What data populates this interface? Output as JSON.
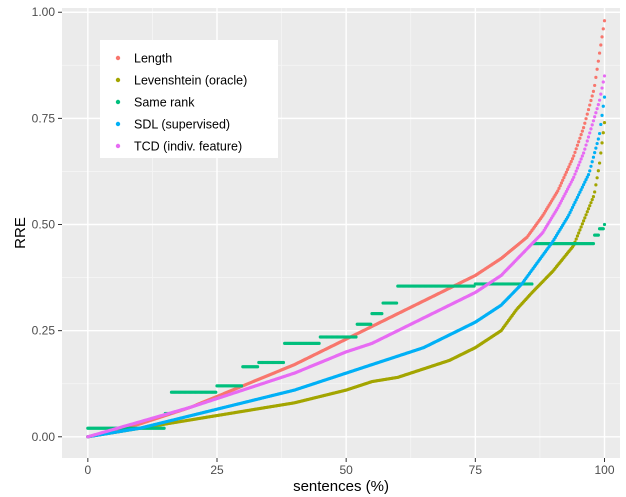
{
  "chart_data": {
    "type": "scatter",
    "title": "",
    "xlabel": "sentences (%)",
    "ylabel": "RRE",
    "xlim": [
      -5,
      103
    ],
    "ylim": [
      -0.05,
      1.01
    ],
    "x_ticks": [
      0,
      25,
      50,
      75,
      100
    ],
    "x_tick_labels": [
      "0",
      "25",
      "50",
      "75",
      "100"
    ],
    "y_ticks": [
      0,
      0.25,
      0.5,
      0.75,
      1.0
    ],
    "y_tick_labels": [
      "0.00",
      "0.25",
      "0.50",
      "0.75",
      "1.00"
    ],
    "grid": true,
    "legend_position": "top-left",
    "series": [
      {
        "name": "Length",
        "color": "#F8766D",
        "points": [
          [
            0,
            0.0
          ],
          [
            10,
            0.03
          ],
          [
            20,
            0.07
          ],
          [
            30,
            0.12
          ],
          [
            40,
            0.17
          ],
          [
            50,
            0.23
          ],
          [
            55,
            0.26
          ],
          [
            60,
            0.29
          ],
          [
            65,
            0.32
          ],
          [
            70,
            0.35
          ],
          [
            75,
            0.38
          ],
          [
            80,
            0.42
          ],
          [
            85,
            0.47
          ],
          [
            88,
            0.52
          ],
          [
            91,
            0.58
          ],
          [
            94,
            0.66
          ],
          [
            96,
            0.73
          ],
          [
            98,
            0.82
          ],
          [
            99,
            0.9
          ],
          [
            100,
            0.98
          ]
        ]
      },
      {
        "name": "Levenshtein (oracle)",
        "color": "#A3A500",
        "points": [
          [
            0,
            0.0
          ],
          [
            10,
            0.02
          ],
          [
            20,
            0.04
          ],
          [
            30,
            0.06
          ],
          [
            40,
            0.08
          ],
          [
            50,
            0.11
          ],
          [
            55,
            0.13
          ],
          [
            60,
            0.14
          ],
          [
            65,
            0.16
          ],
          [
            70,
            0.18
          ],
          [
            75,
            0.21
          ],
          [
            80,
            0.25
          ],
          [
            83,
            0.3
          ],
          [
            86,
            0.34
          ],
          [
            90,
            0.39
          ],
          [
            94,
            0.45
          ],
          [
            96,
            0.51
          ],
          [
            98,
            0.57
          ],
          [
            99,
            0.64
          ],
          [
            100,
            0.74
          ]
        ]
      },
      {
        "name": "Same rank",
        "color": "#00BF7D",
        "points": [
          [
            0,
            0.02
          ],
          [
            5,
            0.02
          ],
          [
            10,
            0.02
          ],
          [
            12,
            0.02
          ],
          [
            15,
            0.055
          ],
          [
            16,
            0.105
          ],
          [
            20,
            0.105
          ],
          [
            25,
            0.12
          ],
          [
            30,
            0.165
          ],
          [
            33,
            0.175
          ],
          [
            38,
            0.22
          ],
          [
            45,
            0.235
          ],
          [
            52,
            0.265
          ],
          [
            55,
            0.29
          ],
          [
            57,
            0.315
          ],
          [
            60,
            0.355
          ],
          [
            70,
            0.355
          ],
          [
            75,
            0.36
          ],
          [
            83,
            0.36
          ],
          [
            86,
            0.455
          ],
          [
            90,
            0.455
          ],
          [
            96,
            0.455
          ],
          [
            98,
            0.475
          ],
          [
            99,
            0.49
          ],
          [
            100,
            0.5
          ]
        ]
      },
      {
        "name": "SDL (supervised)",
        "color": "#00B0F6",
        "points": [
          [
            0,
            0.0
          ],
          [
            10,
            0.02
          ],
          [
            20,
            0.05
          ],
          [
            30,
            0.08
          ],
          [
            40,
            0.11
          ],
          [
            50,
            0.15
          ],
          [
            55,
            0.17
          ],
          [
            60,
            0.19
          ],
          [
            65,
            0.21
          ],
          [
            70,
            0.24
          ],
          [
            75,
            0.27
          ],
          [
            80,
            0.31
          ],
          [
            84,
            0.36
          ],
          [
            87,
            0.41
          ],
          [
            90,
            0.46
          ],
          [
            93,
            0.52
          ],
          [
            95,
            0.57
          ],
          [
            97,
            0.62
          ],
          [
            99,
            0.71
          ],
          [
            100,
            0.8
          ]
        ]
      },
      {
        "name": "TCD (indiv. feature)",
        "color": "#E76BF3",
        "points": [
          [
            0,
            0.0
          ],
          [
            10,
            0.035
          ],
          [
            20,
            0.07
          ],
          [
            30,
            0.11
          ],
          [
            40,
            0.15
          ],
          [
            50,
            0.2
          ],
          [
            55,
            0.22
          ],
          [
            60,
            0.25
          ],
          [
            65,
            0.28
          ],
          [
            70,
            0.31
          ],
          [
            75,
            0.34
          ],
          [
            80,
            0.38
          ],
          [
            84,
            0.43
          ],
          [
            88,
            0.48
          ],
          [
            91,
            0.54
          ],
          [
            94,
            0.61
          ],
          [
            96,
            0.67
          ],
          [
            98,
            0.75
          ],
          [
            99,
            0.79
          ],
          [
            100,
            0.85
          ]
        ]
      }
    ]
  }
}
